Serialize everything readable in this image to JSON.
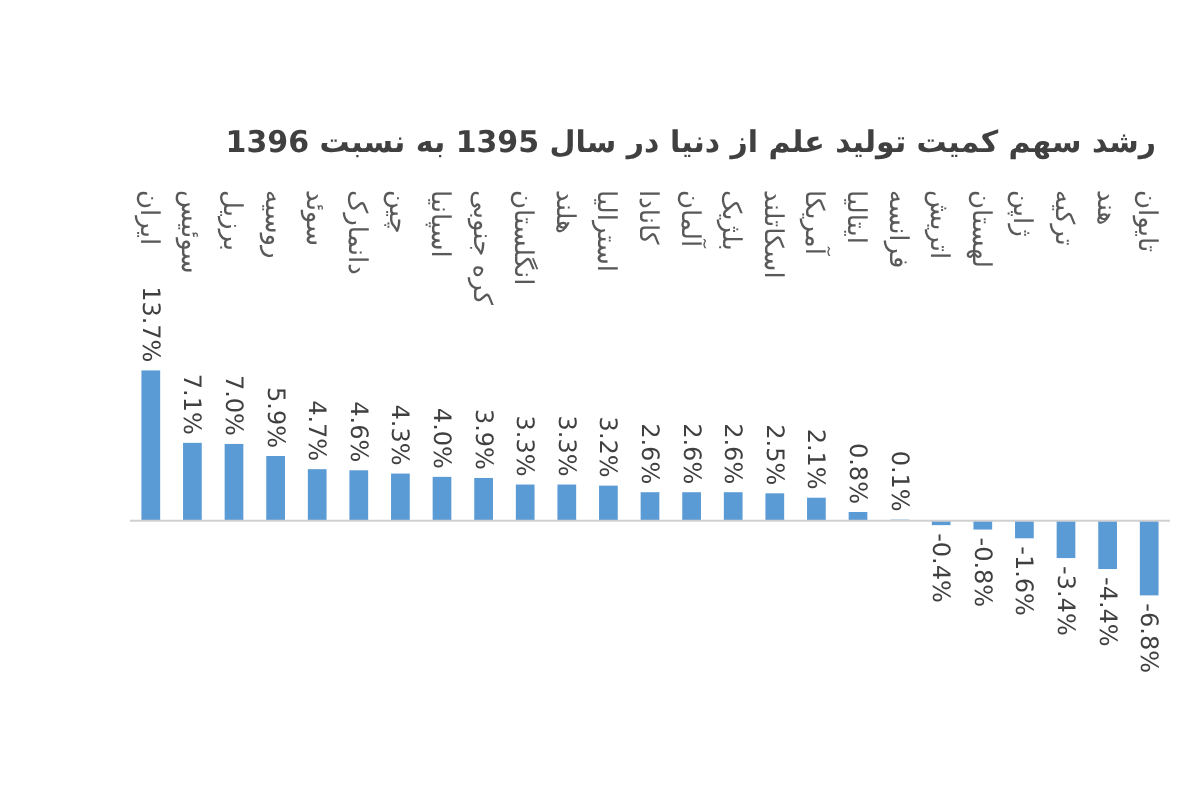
{
  "chart_data": {
    "type": "bar",
    "title": "رشد سهم کمیت تولید علم از دنیا در سال 1395 به نسبت 1396",
    "categories": [
      "ایران",
      "سوئیس",
      "برزیل",
      "روسیه",
      "سوئد",
      "دانمارک",
      "چین",
      "اسپانیا",
      "کره جنوبی",
      "انگلستان",
      "هلند",
      "استرالیا",
      "کانادا",
      "آلمان",
      "بلژیک",
      "اسکاتلند",
      "آمریکا",
      "ایتالیا",
      "فرانسه",
      "اتریش",
      "لهستان",
      "ژاپن",
      "ترکیه",
      "هند",
      "تایوان"
    ],
    "values": [
      13.7,
      7.1,
      7.0,
      5.9,
      4.7,
      4.6,
      4.3,
      4.0,
      3.9,
      3.3,
      3.3,
      3.2,
      2.6,
      2.6,
      2.6,
      2.5,
      2.1,
      0.8,
      0.1,
      -0.4,
      -0.8,
      -1.6,
      -3.4,
      -4.4,
      -6.8
    ],
    "value_labels": [
      "13.7%",
      "7.1%",
      "7.0%",
      "5.9%",
      "4.7%",
      "4.6%",
      "4.3%",
      "4.0%",
      "3.9%",
      "3.3%",
      "3.3%",
      "3.2%",
      "2.6%",
      "2.6%",
      "2.6%",
      "2.5%",
      "2.1%",
      "0.8%",
      "0.1%",
      "-0.4%",
      "-0.8%",
      "-1.6%",
      "-3.4%",
      "-4.4%",
      "-6.8%"
    ],
    "color": "#5b9bd5"
  }
}
